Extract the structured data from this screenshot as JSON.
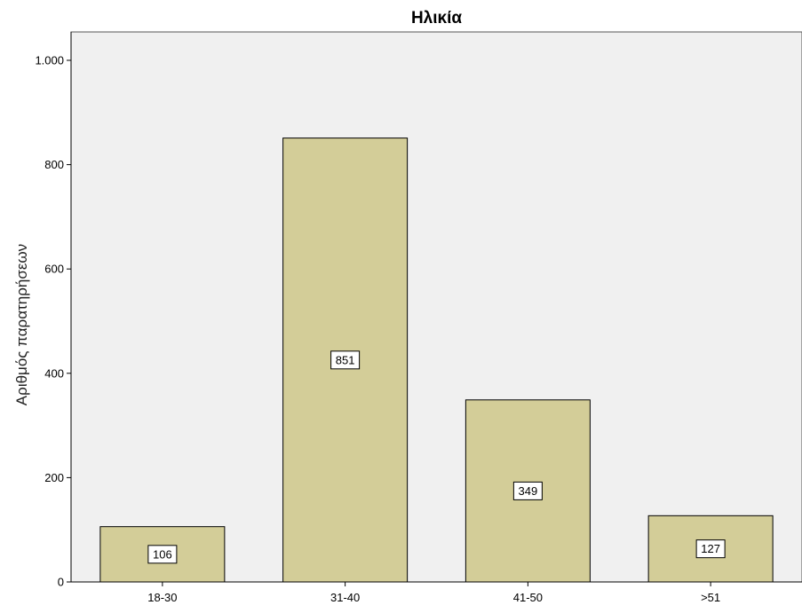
{
  "chart_data": {
    "type": "bar",
    "title": "Ηλικία",
    "xlabel": "",
    "ylabel": "Αριθμός παρατηρήσεων",
    "categories": [
      "18-30",
      "31-40",
      "41-50",
      ">51"
    ],
    "values": [
      106,
      851,
      349,
      127
    ],
    "data_labels": [
      "106",
      "851",
      "349",
      "127"
    ],
    "yticks": [
      0,
      200,
      400,
      600,
      800,
      1000
    ],
    "ytick_labels": [
      "0",
      "200",
      "400",
      "600",
      "800",
      "1.000"
    ],
    "ylim": [
      0,
      1000
    ],
    "grid": false,
    "legend": "none",
    "colors": {
      "bar_fill": "#d3cd98",
      "bar_stroke": "#000000",
      "plot_bg": "#f0f0f0",
      "frame": "#555555",
      "label_box_fill": "#ffffff"
    }
  }
}
